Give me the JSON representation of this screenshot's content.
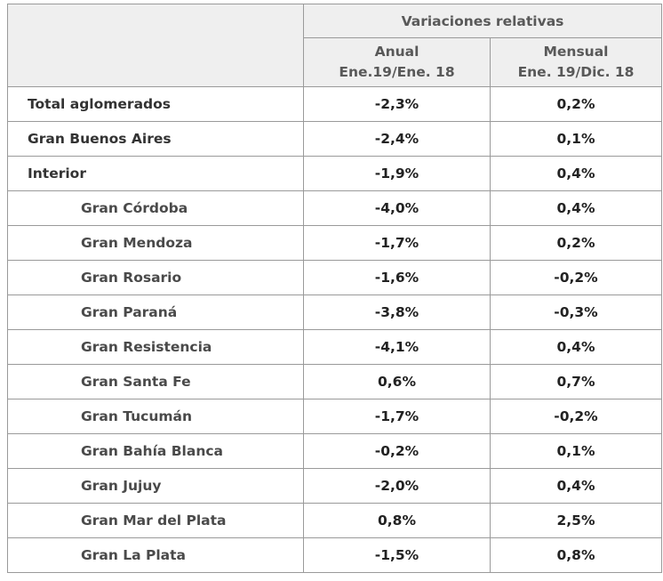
{
  "header": {
    "group": "Variaciones relativas",
    "col1_title": "Anual",
    "col1_sub": "Ene.19/Ene. 18",
    "col2_title": "Mensual",
    "col2_sub": "Ene. 19/Dic. 18"
  },
  "rows": [
    {
      "name": "Total aglomerados",
      "anual": "-2,3%",
      "mensual": "0,2%"
    },
    {
      "name": "Gran Buenos Aires",
      "anual": "-2,4%",
      "mensual": "0,1%"
    },
    {
      "name": "Interior",
      "anual": "-1,9%",
      "mensual": "0,4%"
    },
    {
      "name": "Gran Córdoba",
      "anual": "-4,0%",
      "mensual": "0,4%"
    },
    {
      "name": "Gran Mendoza",
      "anual": "-1,7%",
      "mensual": "0,2%"
    },
    {
      "name": "Gran Rosario",
      "anual": "-1,6%",
      "mensual": "-0,2%"
    },
    {
      "name": "Gran Paraná",
      "anual": "-3,8%",
      "mensual": "-0,3%"
    },
    {
      "name": "Gran Resistencia",
      "anual": "-4,1%",
      "mensual": "0,4%"
    },
    {
      "name": "Gran Santa Fe",
      "anual": "0,6%",
      "mensual": "0,7%"
    },
    {
      "name": "Gran Tucumán",
      "anual": "-1,7%",
      "mensual": "-0,2%"
    },
    {
      "name": "Gran Bahía Blanca",
      "anual": "-0,2%",
      "mensual": "0,1%"
    },
    {
      "name": "Gran Jujuy",
      "anual": "-2,0%",
      "mensual": "0,4%"
    },
    {
      "name": "Gran Mar del Plata",
      "anual": "0,8%",
      "mensual": "2,5%"
    },
    {
      "name": "Gran La Plata",
      "anual": "-1,5%",
      "mensual": "0,8%"
    }
  ]
}
